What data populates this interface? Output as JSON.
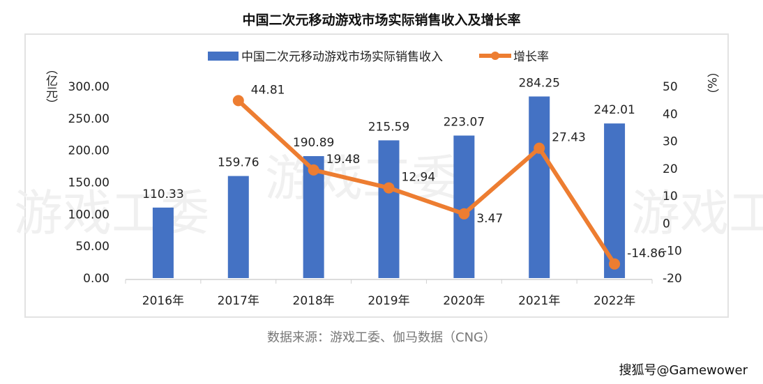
{
  "title": "中国二次元移动游戏市场实际销售收入及增长率",
  "source": "数据来源：游戏工委、伽马数据（CNG）",
  "credit": "搜狐号@Gamewower",
  "watermark": "游戏工委",
  "chart_data": {
    "type": "bar+line",
    "title": "中国二次元移动游戏市场实际销售收入及增长率",
    "categories": [
      "2016年",
      "2017年",
      "2018年",
      "2019年",
      "2020年",
      "2021年",
      "2022年"
    ],
    "series": [
      {
        "name": "中国二次元移动游戏市场实际销售收入",
        "type": "bar",
        "axis": "left",
        "color": "#4472c4",
        "values": [
          110.33,
          159.76,
          190.89,
          215.59,
          223.07,
          284.25,
          242.01
        ],
        "labels": [
          "110.33",
          "159.76",
          "190.89",
          "215.59",
          "223.07",
          "284.25",
          "242.01"
        ]
      },
      {
        "name": "增长率",
        "type": "line",
        "axis": "right",
        "color": "#ed7d31",
        "values": [
          null,
          44.81,
          19.48,
          12.94,
          3.47,
          27.43,
          -14.86
        ],
        "labels": [
          "",
          "44.81",
          "19.48",
          "12.94",
          "3.47",
          "27.43",
          "-14.86"
        ]
      }
    ],
    "left_axis": {
      "label": "（亿元）",
      "ylim": [
        0,
        300
      ],
      "ticks": [
        "0.00",
        "50.00",
        "100.00",
        "150.00",
        "200.00",
        "250.00",
        "300.00"
      ]
    },
    "right_axis": {
      "label": "（%）",
      "ylim": [
        -20,
        50
      ],
      "ticks": [
        "-20",
        "-10",
        "0",
        "10",
        "20",
        "30",
        "40",
        "50"
      ]
    },
    "legend": "top",
    "grid": false
  }
}
